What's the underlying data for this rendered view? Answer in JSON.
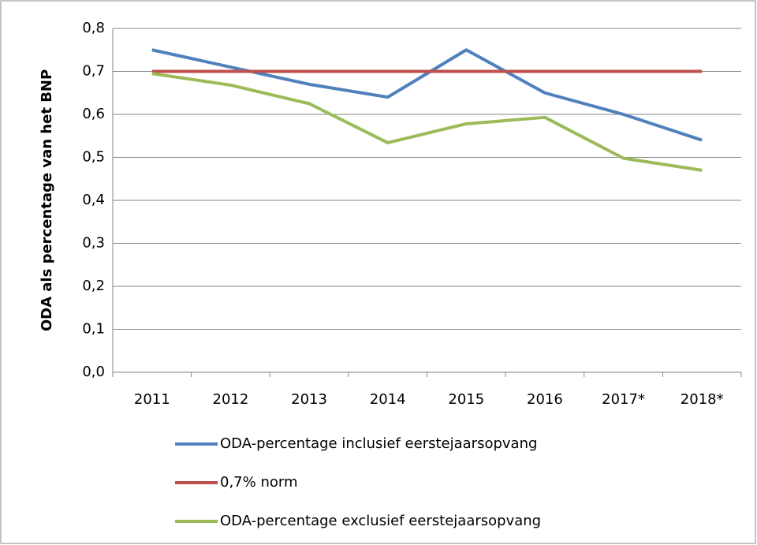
{
  "chart_data": {
    "type": "line",
    "y_label": "ODA als percentage van het BNP",
    "categories": [
      "2011",
      "2012",
      "2013",
      "2014",
      "2015",
      "2016",
      "2017*",
      "2018*"
    ],
    "series": [
      {
        "name": "ODA-percentage inclusief eerstejaarsopvang",
        "color": "#4f81bd",
        "values": [
          0.75,
          0.71,
          0.67,
          0.64,
          0.75,
          0.65,
          0.6,
          0.54
        ]
      },
      {
        "name": "0,7% norm",
        "color": "#c0504d",
        "values": [
          0.7,
          0.7,
          0.7,
          0.7,
          0.7,
          0.7,
          0.7,
          0.7
        ]
      },
      {
        "name": "ODA-percentage exclusief eerstejaarsopvang",
        "color": "#9bbb59",
        "values": [
          0.695,
          0.668,
          0.625,
          0.534,
          0.578,
          0.593,
          0.498,
          0.47
        ]
      }
    ],
    "ylim": [
      0,
      0.8
    ],
    "yticks": [
      {
        "value": 0,
        "label": "0,0"
      },
      {
        "value": 0.1,
        "label": "0,1"
      },
      {
        "value": 0.2,
        "label": "0,2"
      },
      {
        "value": 0.3,
        "label": "0,3"
      },
      {
        "value": 0.4,
        "label": "0,4"
      },
      {
        "value": 0.5,
        "label": "0,5"
      },
      {
        "value": 0.6,
        "label": "0,6"
      },
      {
        "value": 0.7,
        "label": "0,7"
      },
      {
        "value": 0.8,
        "label": "0,8"
      }
    ],
    "grid": true,
    "legend": "bottom"
  }
}
